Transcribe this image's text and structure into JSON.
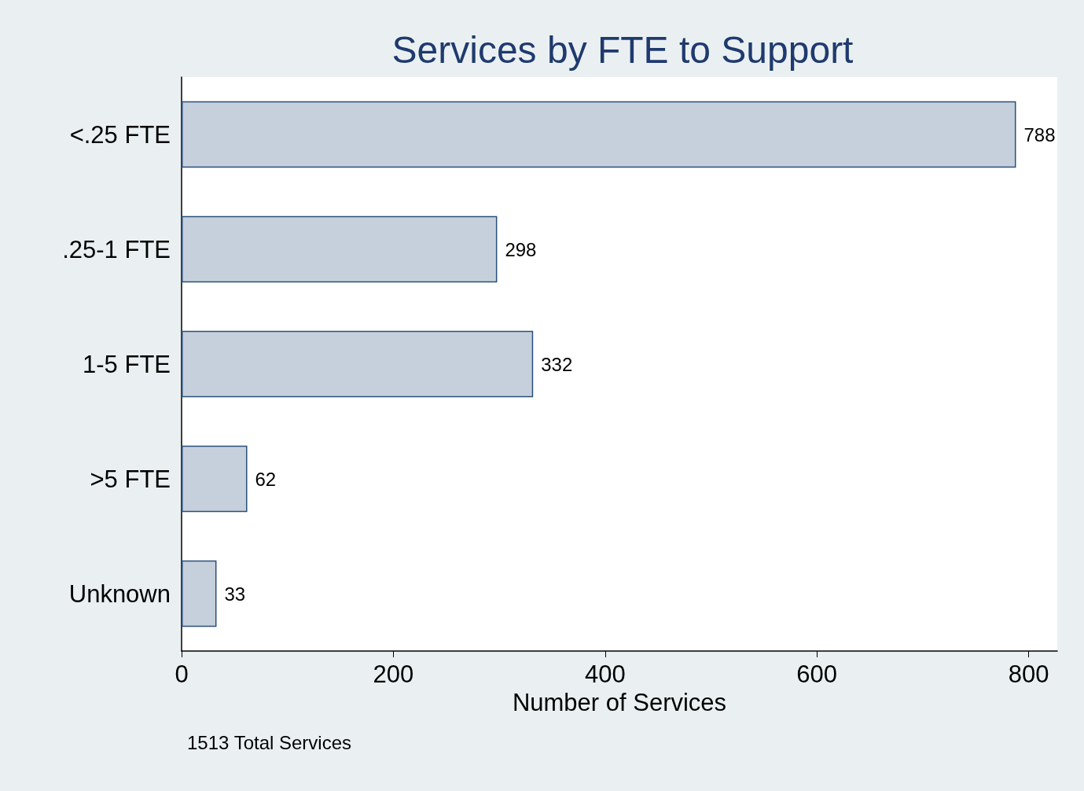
{
  "chart_data": {
    "type": "bar",
    "orientation": "horizontal",
    "title": "Services by FTE to Support",
    "xlabel": "Number of Services",
    "categories": [
      "<.25 FTE",
      ".25-1 FTE",
      "1-5 FTE",
      ">5 FTE",
      "Unknown"
    ],
    "values": [
      788,
      298,
      332,
      62,
      33
    ],
    "color": "#c6d0dc",
    "data_labels": true,
    "xlim": [
      0,
      827
    ],
    "xticks": [
      0,
      200,
      400,
      600,
      800
    ],
    "grid": false,
    "annotations": [
      "1513 Total Services"
    ]
  }
}
